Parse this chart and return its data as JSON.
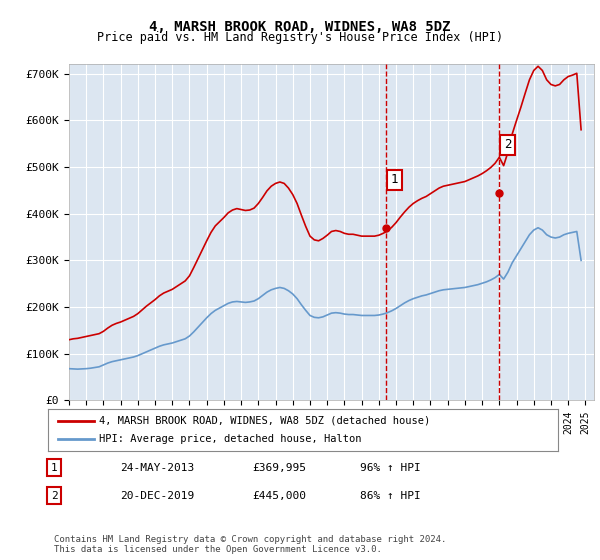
{
  "title": "4, MARSH BROOK ROAD, WIDNES, WA8 5DZ",
  "subtitle": "Price paid vs. HM Land Registry's House Price Index (HPI)",
  "background_color": "#ffffff",
  "plot_bg_color": "#dce6f1",
  "grid_color": "#ffffff",
  "ylabel": "",
  "ylim": [
    0,
    720000
  ],
  "yticks": [
    0,
    100000,
    200000,
    300000,
    400000,
    500000,
    600000,
    700000
  ],
  "ytick_labels": [
    "£0",
    "£100K",
    "£200K",
    "£300K",
    "£400K",
    "£500K",
    "£600K",
    "£700K"
  ],
  "xlim_start": 1995.0,
  "xlim_end": 2025.5,
  "xtick_years": [
    1995,
    1996,
    1997,
    1998,
    1999,
    2000,
    2001,
    2002,
    2003,
    2004,
    2005,
    2006,
    2007,
    2008,
    2009,
    2010,
    2011,
    2012,
    2013,
    2014,
    2015,
    2016,
    2017,
    2018,
    2019,
    2020,
    2021,
    2022,
    2023,
    2024,
    2025
  ],
  "red_line_color": "#cc0000",
  "blue_line_color": "#6699cc",
  "annotation_color": "#cc0000",
  "vline_color": "#cc0000",
  "sale1_x": 2013.39,
  "sale1_y": 369995,
  "sale1_label": "1",
  "sale2_x": 2019.97,
  "sale2_y": 445000,
  "sale2_label": "2",
  "legend_red": "4, MARSH BROOK ROAD, WIDNES, WA8 5DZ (detached house)",
  "legend_blue": "HPI: Average price, detached house, Halton",
  "note1_label": "1",
  "note1_date": "24-MAY-2013",
  "note1_price": "£369,995",
  "note1_hpi": "96% ↑ HPI",
  "note2_label": "2",
  "note2_date": "20-DEC-2019",
  "note2_price": "£445,000",
  "note2_hpi": "86% ↑ HPI",
  "footer": "Contains HM Land Registry data © Crown copyright and database right 2024.\nThis data is licensed under the Open Government Licence v3.0.",
  "hpi_data_x": [
    1995.0,
    1995.25,
    1995.5,
    1995.75,
    1996.0,
    1996.25,
    1996.5,
    1996.75,
    1997.0,
    1997.25,
    1997.5,
    1997.75,
    1998.0,
    1998.25,
    1998.5,
    1998.75,
    1999.0,
    1999.25,
    1999.5,
    1999.75,
    2000.0,
    2000.25,
    2000.5,
    2000.75,
    2001.0,
    2001.25,
    2001.5,
    2001.75,
    2002.0,
    2002.25,
    2002.5,
    2002.75,
    2003.0,
    2003.25,
    2003.5,
    2003.75,
    2004.0,
    2004.25,
    2004.5,
    2004.75,
    2005.0,
    2005.25,
    2005.5,
    2005.75,
    2006.0,
    2006.25,
    2006.5,
    2006.75,
    2007.0,
    2007.25,
    2007.5,
    2007.75,
    2008.0,
    2008.25,
    2008.5,
    2008.75,
    2009.0,
    2009.25,
    2009.5,
    2009.75,
    2010.0,
    2010.25,
    2010.5,
    2010.75,
    2011.0,
    2011.25,
    2011.5,
    2011.75,
    2012.0,
    2012.25,
    2012.5,
    2012.75,
    2013.0,
    2013.25,
    2013.5,
    2013.75,
    2014.0,
    2014.25,
    2014.5,
    2014.75,
    2015.0,
    2015.25,
    2015.5,
    2015.75,
    2016.0,
    2016.25,
    2016.5,
    2016.75,
    2017.0,
    2017.25,
    2017.5,
    2017.75,
    2018.0,
    2018.25,
    2018.5,
    2018.75,
    2019.0,
    2019.25,
    2019.5,
    2019.75,
    2020.0,
    2020.25,
    2020.5,
    2020.75,
    2021.0,
    2021.25,
    2021.5,
    2021.75,
    2022.0,
    2022.25,
    2022.5,
    2022.75,
    2023.0,
    2023.25,
    2023.5,
    2023.75,
    2024.0,
    2024.25,
    2024.5,
    2024.75
  ],
  "hpi_data_y": [
    68000,
    67500,
    67000,
    67500,
    68000,
    69000,
    70500,
    72000,
    76000,
    80000,
    83000,
    85000,
    87000,
    89000,
    91000,
    93000,
    96000,
    100000,
    104000,
    108000,
    112000,
    116000,
    119000,
    121000,
    123000,
    126000,
    129000,
    132000,
    138000,
    147000,
    157000,
    167000,
    177000,
    186000,
    193000,
    198000,
    203000,
    208000,
    211000,
    212000,
    211000,
    210000,
    211000,
    213000,
    218000,
    225000,
    232000,
    237000,
    240000,
    242000,
    240000,
    235000,
    228000,
    218000,
    205000,
    193000,
    182000,
    178000,
    177000,
    179000,
    183000,
    187000,
    188000,
    187000,
    185000,
    184000,
    184000,
    183000,
    182000,
    182000,
    182000,
    182000,
    183000,
    185000,
    188000,
    192000,
    197000,
    203000,
    209000,
    214000,
    218000,
    221000,
    224000,
    226000,
    229000,
    232000,
    235000,
    237000,
    238000,
    239000,
    240000,
    241000,
    242000,
    244000,
    246000,
    248000,
    251000,
    254000,
    258000,
    263000,
    270000,
    260000,
    275000,
    295000,
    310000,
    325000,
    340000,
    355000,
    365000,
    370000,
    365000,
    355000,
    350000,
    348000,
    350000,
    355000,
    358000,
    360000,
    362000,
    300000
  ],
  "red_data_x": [
    1995.0,
    1995.25,
    1995.5,
    1995.75,
    1996.0,
    1996.25,
    1996.5,
    1996.75,
    1997.0,
    1997.25,
    1997.5,
    1997.75,
    1998.0,
    1998.25,
    1998.5,
    1998.75,
    1999.0,
    1999.25,
    1999.5,
    1999.75,
    2000.0,
    2000.25,
    2000.5,
    2000.75,
    2001.0,
    2001.25,
    2001.5,
    2001.75,
    2002.0,
    2002.25,
    2002.5,
    2002.75,
    2003.0,
    2003.25,
    2003.5,
    2003.75,
    2004.0,
    2004.25,
    2004.5,
    2004.75,
    2005.0,
    2005.25,
    2005.5,
    2005.75,
    2006.0,
    2006.25,
    2006.5,
    2006.75,
    2007.0,
    2007.25,
    2007.5,
    2007.75,
    2008.0,
    2008.25,
    2008.5,
    2008.75,
    2009.0,
    2009.25,
    2009.5,
    2009.75,
    2010.0,
    2010.25,
    2010.5,
    2010.75,
    2011.0,
    2011.25,
    2011.5,
    2011.75,
    2012.0,
    2012.25,
    2012.5,
    2012.75,
    2013.0,
    2013.25,
    2013.5,
    2013.75,
    2014.0,
    2014.25,
    2014.5,
    2014.75,
    2015.0,
    2015.25,
    2015.5,
    2015.75,
    2016.0,
    2016.25,
    2016.5,
    2016.75,
    2017.0,
    2017.25,
    2017.5,
    2017.75,
    2018.0,
    2018.25,
    2018.5,
    2018.75,
    2019.0,
    2019.25,
    2019.5,
    2019.75,
    2020.0,
    2020.25,
    2020.5,
    2020.75,
    2021.0,
    2021.25,
    2021.5,
    2021.75,
    2022.0,
    2022.25,
    2022.5,
    2022.75,
    2023.0,
    2023.25,
    2023.5,
    2023.75,
    2024.0,
    2024.25,
    2024.5,
    2024.75
  ],
  "red_data_y": [
    130000,
    132000,
    133000,
    135000,
    137000,
    139000,
    141000,
    143000,
    148000,
    155000,
    161000,
    165000,
    168000,
    172000,
    176000,
    180000,
    186000,
    194000,
    202000,
    209000,
    216000,
    224000,
    230000,
    234000,
    238000,
    244000,
    250000,
    256000,
    267000,
    285000,
    304000,
    323000,
    342000,
    360000,
    374000,
    383000,
    392000,
    402000,
    408000,
    411000,
    409000,
    407000,
    408000,
    412000,
    422000,
    435000,
    449000,
    459000,
    465000,
    468000,
    465000,
    455000,
    441000,
    422000,
    397000,
    373000,
    352000,
    344000,
    342000,
    347000,
    354000,
    362000,
    364000,
    362000,
    358000,
    356000,
    356000,
    354000,
    352000,
    352000,
    352000,
    352000,
    354000,
    358000,
    363000,
    371000,
    381000,
    393000,
    404000,
    414000,
    422000,
    428000,
    433000,
    437000,
    443000,
    449000,
    455000,
    459000,
    461000,
    463000,
    465000,
    467000,
    469000,
    473000,
    477000,
    481000,
    486000,
    492000,
    499000,
    508000,
    521000,
    503000,
    532000,
    571000,
    600000,
    628000,
    658000,
    687000,
    707000,
    716000,
    707000,
    687000,
    677000,
    674000,
    677000,
    687000,
    694000,
    697000,
    701000,
    580000
  ]
}
